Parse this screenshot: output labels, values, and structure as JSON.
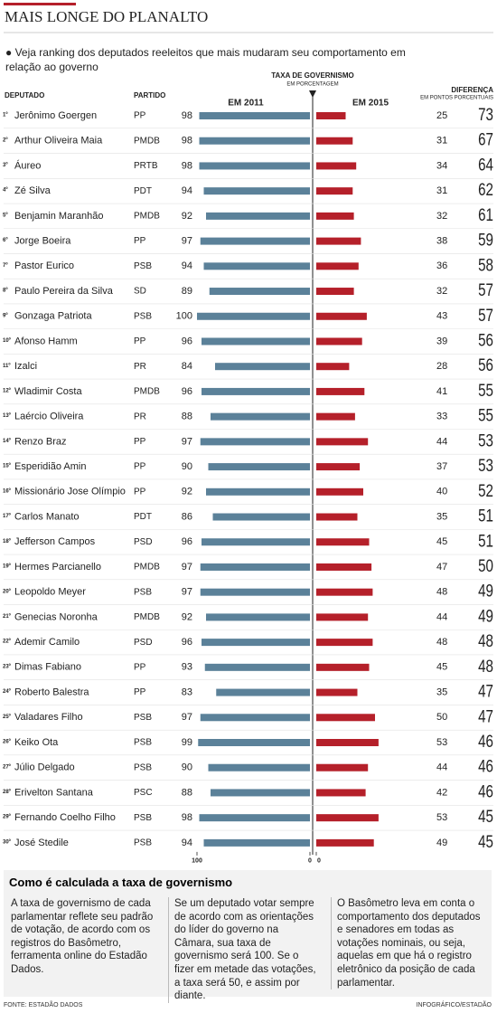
{
  "chart_data": {
    "type": "bar",
    "title": "MAIS LONGE DO PLANALTO",
    "subtitle": "Veja ranking dos deputados reeleitos que mais mudaram seu comportamento em relação ao governo",
    "name_header": "DEPUTADO",
    "party_header": "PARTIDO",
    "axis_title": "TAXA DE GOVERNISMO",
    "axis_subtitle": "EM PORCENTAGEM",
    "difference_header": "DIFERENÇA",
    "difference_subtitle": "EM PONTOS PORCENTUAIS",
    "ranks": [
      "1º",
      "2º",
      "3º",
      "4º",
      "5º",
      "6º",
      "7º",
      "8º",
      "9º",
      "10º",
      "11º",
      "12º",
      "13º",
      "14º",
      "15º",
      "16º",
      "17º",
      "18º",
      "19º",
      "20º",
      "21º",
      "22º",
      "23º",
      "24º",
      "25º",
      "26º",
      "27º",
      "28º",
      "29º",
      "30º"
    ],
    "categories": [
      "Jerônimo Goergen",
      "Arthur Oliveira Maia",
      "Áureo",
      "Zé Silva",
      "Benjamin Maranhão",
      "Jorge Boeira",
      "Pastor Eurico",
      "Paulo Pereira da Silva",
      "Gonzaga Patriota",
      "Afonso Hamm",
      "Izalci",
      "Wladimir Costa",
      "Laércio Oliveira",
      "Renzo Braz",
      "Esperidião Amin",
      "Missionário Jose Olímpio",
      "Carlos Manato",
      "Jefferson Campos",
      "Hermes Parcianello",
      "Leopoldo Meyer",
      "Genecias Noronha",
      "Ademir Camilo",
      "Dimas Fabiano",
      "Roberto Balestra",
      "Valadares Filho",
      "Keiko Ota",
      "Júlio Delgado",
      "Erivelton Santana",
      "Fernando Coelho Filho",
      "José Stedile"
    ],
    "parties": [
      "PP",
      "PMDB",
      "PRTB",
      "PDT",
      "PMDB",
      "PP",
      "PSB",
      "SD",
      "PSB",
      "PP",
      "PR",
      "PMDB",
      "PR",
      "PP",
      "PP",
      "PP",
      "PDT",
      "PSD",
      "PMDB",
      "PSB",
      "PMDB",
      "PSD",
      "PP",
      "PP",
      "PSB",
      "PSB",
      "PSB",
      "PSC",
      "PSB",
      "PSB"
    ],
    "series": [
      {
        "name": "EM 2011",
        "color": "#5b8199",
        "values": [
          98,
          98,
          98,
          94,
          92,
          97,
          94,
          89,
          100,
          96,
          84,
          96,
          88,
          97,
          90,
          92,
          86,
          96,
          97,
          97,
          92,
          96,
          93,
          83,
          97,
          99,
          90,
          88,
          98,
          94
        ]
      },
      {
        "name": "EM 2015",
        "color": "#b5202a",
        "values": [
          25,
          31,
          34,
          31,
          32,
          38,
          36,
          32,
          43,
          39,
          28,
          41,
          33,
          44,
          37,
          40,
          35,
          45,
          47,
          48,
          44,
          48,
          45,
          35,
          50,
          53,
          44,
          42,
          53,
          49
        ]
      }
    ],
    "differences": [
      73,
      67,
      64,
      62,
      61,
      59,
      58,
      57,
      57,
      56,
      56,
      55,
      55,
      53,
      53,
      52,
      51,
      51,
      50,
      49,
      49,
      48,
      48,
      47,
      47,
      46,
      46,
      46,
      45,
      45
    ],
    "xlim": [
      0,
      100
    ],
    "xticks": [
      100,
      0
    ],
    "x2lim": [
      0,
      100
    ],
    "x2ticks": [
      0
    ]
  },
  "box": {
    "title": "Como é calculada a taxa de governismo",
    "paragraphs": [
      "A taxa de governismo de cada parlamentar reflete seu padrão de votação, de acordo com os registros do Basômetro, ferramenta online do Estadão Dados.",
      "Se um deputado votar sempre de acordo com as orientações do líder do governo na Câmara, sua taxa de governismo será 100. Se o fizer em metade das votações, a taxa será 50, e assim por diante.",
      "O Basômetro leva em conta o comportamento dos deputados e senadores em todas as votações nominais, ou seja, aquelas em que há o registro eletrônico da posição de cada parlamentar."
    ]
  },
  "footer": {
    "source": "FONTE: ESTADÃO DADOS",
    "credit": "INFOGRÁFICO/ESTADÃO"
  }
}
